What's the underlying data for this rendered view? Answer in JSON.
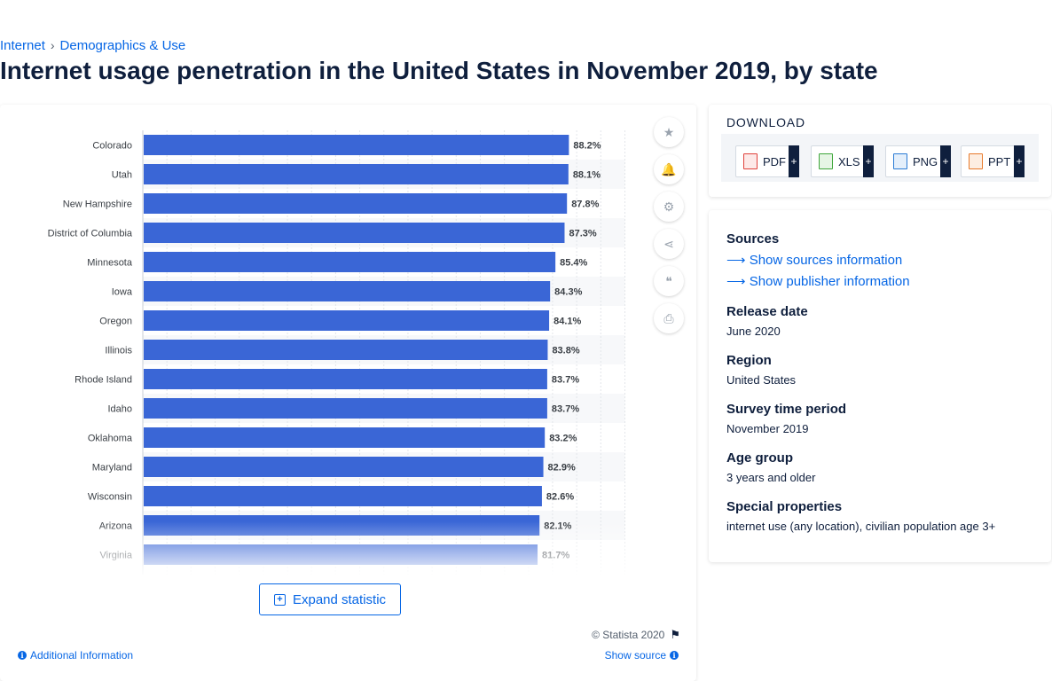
{
  "breadcrumb": {
    "items": [
      "Internet",
      "Demographics & Use"
    ],
    "separator": "›"
  },
  "page_title": "Internet usage penetration in the United States in November 2019, by state",
  "chart_data": {
    "type": "bar",
    "orientation": "horizontal",
    "categories": [
      "Colorado",
      "Utah",
      "New Hampshire",
      "District of Columbia",
      "Minnesota",
      "Iowa",
      "Oregon",
      "Illinois",
      "Rhode Island",
      "Idaho",
      "Oklahoma",
      "Maryland",
      "Wisconsin",
      "Arizona",
      "Virginia"
    ],
    "values": [
      88.2,
      88.1,
      87.8,
      87.3,
      85.4,
      84.3,
      84.1,
      83.8,
      83.7,
      83.7,
      83.2,
      82.9,
      82.6,
      82.1,
      81.7
    ],
    "labels": [
      "88.2%",
      "88.1%",
      "87.8%",
      "87.3%",
      "85.4%",
      "84.3%",
      "84.1%",
      "83.8%",
      "83.7%",
      "83.7%",
      "83.2%",
      "82.9%",
      "82.6%",
      "82.1%",
      "81.7%"
    ],
    "unit": "%",
    "xlim": [
      0,
      100
    ],
    "grid": true,
    "bar_color": "#3a66d6"
  },
  "chart_card": {
    "expand_label": "Expand statistic",
    "copyright": "© Statista 2020",
    "additional_info": "Additional Information",
    "show_source": "Show source",
    "tool_icons": [
      "star-icon",
      "bell-icon",
      "gear-icon",
      "share-icon",
      "quote-icon",
      "print-icon"
    ]
  },
  "download": {
    "title": "DOWNLOAD",
    "buttons": [
      {
        "label": "PDF",
        "color": "#e0413b"
      },
      {
        "label": "XLS",
        "color": "#3ea63a"
      },
      {
        "label": "PNG",
        "color": "#2a7bd5"
      },
      {
        "label": "PPT",
        "color": "#e8792a"
      }
    ],
    "plus": "+"
  },
  "meta": {
    "sources_heading": "Sources",
    "show_sources": "Show sources information",
    "show_publisher": "Show publisher information",
    "release_heading": "Release date",
    "release_value": "June 2020",
    "region_heading": "Region",
    "region_value": "United States",
    "survey_heading": "Survey time period",
    "survey_value": "November 2019",
    "age_heading": "Age group",
    "age_value": "3 years and older",
    "special_heading": "Special properties",
    "special_value": "internet use (any location), civilian population age 3+"
  },
  "colors": {
    "accent": "#0666e5",
    "dark": "#0f1f3d",
    "bar": "#3a66d6"
  }
}
